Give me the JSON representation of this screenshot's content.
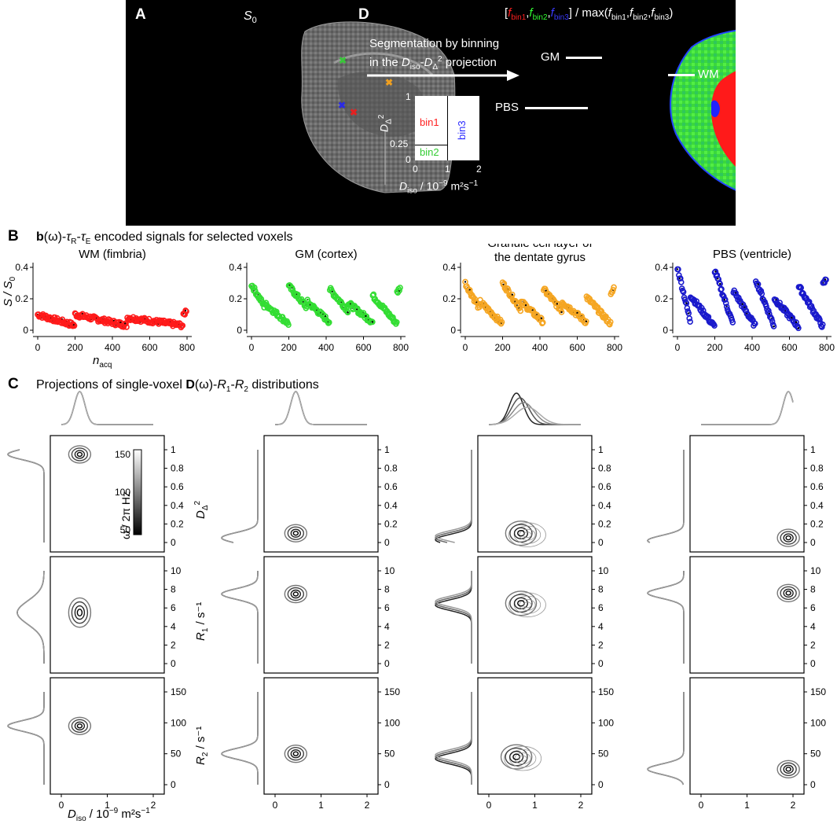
{
  "panel_a": {
    "label": "A",
    "title_main": "S",
    "title_sub": "0",
    "marker_colors": {
      "green": "#39c639",
      "orange": "#f0a020",
      "blue": "#2a2ae6",
      "red": "#e62020"
    }
  },
  "panel_d": {
    "label": "D",
    "header": {
      "open": "[",
      "f1": "f",
      "f1sub": "bin1",
      "f2": "f",
      "f2sub": "bin2",
      "f3": "f",
      "f3sub": "bin3",
      "close": "] / max(",
      "m1": "f",
      "m1sub": "bin1",
      "m2": "f",
      "m2sub": "bin2",
      "m3": "f",
      "m3sub": "bin3",
      "end": ")"
    },
    "arrow_line1": "Segmentation by binning",
    "arrow_line2_pre": "in the ",
    "arrow_line2_d": "D",
    "arrow_line2_dsub": "iso",
    "arrow_line2_mid": "-",
    "arrow_line2_d2": "D",
    "arrow_line2_d2sub": "Δ",
    "arrow_line2_sup": "2",
    "arrow_line2_post": " projection",
    "bins": {
      "bin1": "bin1",
      "bin2": "bin2",
      "bin3": "bin3"
    },
    "bin_y_ticks": [
      "1",
      "0.25",
      "0"
    ],
    "bin_x_ticks": [
      "0",
      "1",
      "2"
    ],
    "bin_ylabel": "D",
    "bin_ylabel_sub": "Δ",
    "bin_ylabel_sup": "2",
    "bin_xlabel": "D",
    "bin_xlabel_sub": "iso",
    "bin_xlabel_post": " / 10",
    "bin_xlabel_exp": "−9",
    "bin_xlabel_unit": " m²s",
    "bin_xlabel_unit_exp": "−1",
    "regions": {
      "gm": "GM",
      "wm": "WM",
      "pbs": "PBS"
    },
    "colors": {
      "bin1": "#ff0000",
      "bin2": "#33ff33",
      "bin3": "#2222ff"
    }
  },
  "panel_b": {
    "label": "B",
    "title_bold": "b",
    "title_rest": "(ω)-",
    "title_tr": "τ",
    "title_tr_sub": "R",
    "title_te": "τ",
    "title_te_sub": "E",
    "title_tail": " encoded signals for selected voxels",
    "ylabel": "S / S",
    "ylabel_sub": "0",
    "xlabel": "n",
    "xlabel_sub": "acq",
    "y_ticks": [
      "0",
      "0.2",
      "0.4"
    ],
    "x_ticks": [
      "0",
      "200",
      "400",
      "600",
      "800"
    ],
    "voxels": [
      {
        "title1": "WM (fimbria)",
        "title2": "",
        "color": "#ff1a1a"
      },
      {
        "title1": "GM (cortex)",
        "title2": "",
        "color": "#33dd33"
      },
      {
        "title1": "Granule cell layer of",
        "title2": "the dentate gyrus",
        "color": "#f5a623"
      },
      {
        "title1": "PBS (ventricle)",
        "title2": "",
        "color": "#1a1acc"
      }
    ]
  },
  "panel_c": {
    "label": "C",
    "title_pre": "Projections of single-voxel ",
    "title_bold": "D",
    "title_mid": "(ω)-",
    "title_r1": "R",
    "title_r1_sub": "1",
    "title_dash": "-",
    "title_r2": "R",
    "title_r2_sub": "2",
    "title_post": " distributions",
    "row_labels": [
      {
        "main": "D",
        "sub": "Δ",
        "sup": "2"
      },
      {
        "main": "R",
        "sub": "1",
        "sup": " / s⁻¹"
      },
      {
        "main": "R",
        "sub": "2",
        "sup": " / s⁻¹"
      }
    ],
    "row_ticks": [
      [
        "0",
        "0.2",
        "0.4",
        "0.6",
        "0.8",
        "1"
      ],
      [
        "0",
        "2",
        "4",
        "6",
        "8",
        "10"
      ],
      [
        "0",
        "50",
        "100",
        "150"
      ]
    ],
    "x_ticks": [
      "0",
      "1",
      "2"
    ],
    "xlabel": "D",
    "xlabel_sub": "iso",
    "xlabel_post": " / 10",
    "xlabel_exp": "−9",
    "xlabel_unit": " m²s",
    "xlabel_unit_exp": "−1",
    "colorbar_ticks": [
      "150",
      "100",
      "50"
    ],
    "colorbar_label": "ω / 2π Hz"
  }
}
